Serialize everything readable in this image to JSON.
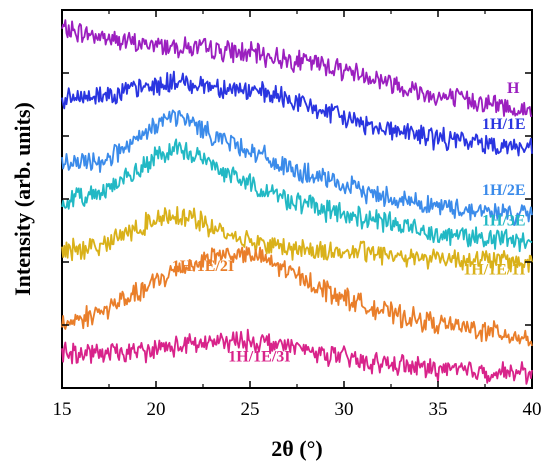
{
  "chart_data": {
    "type": "line",
    "xlabel": "2θ (°)",
    "ylabel": "Intensity (arb. units)",
    "xlim": [
      15,
      40
    ],
    "ylim": [
      0,
      1
    ],
    "xticks": [
      "15",
      "20",
      "25",
      "30",
      "35",
      "40"
    ],
    "x_tick_values": [
      15,
      20,
      25,
      30,
      35,
      40
    ],
    "grid": false,
    "legend": "inline labels",
    "series": [
      {
        "name": "H",
        "color": "#9B1FBF",
        "x": [
          15,
          17,
          19,
          21,
          23,
          25,
          27,
          29,
          31,
          33,
          35,
          37,
          39,
          40
        ],
        "y": [
          0.95,
          0.93,
          0.91,
          0.905,
          0.895,
          0.885,
          0.87,
          0.855,
          0.83,
          0.8,
          0.77,
          0.76,
          0.74,
          0.73
        ]
      },
      {
        "name": "1H/1E",
        "color": "#2A35E0",
        "x": [
          15,
          17,
          19,
          21,
          22,
          23,
          25,
          27,
          29,
          31,
          33,
          35,
          37,
          39,
          40
        ],
        "y": [
          0.76,
          0.775,
          0.79,
          0.81,
          0.805,
          0.8,
          0.785,
          0.765,
          0.73,
          0.7,
          0.68,
          0.66,
          0.65,
          0.64,
          0.63
        ]
      },
      {
        "name": "1H/2E",
        "color": "#3B8BEA",
        "x": [
          15,
          17,
          19,
          20,
          21,
          22,
          23,
          25,
          27,
          29,
          31,
          33,
          35,
          37,
          39,
          40
        ],
        "y": [
          0.59,
          0.6,
          0.65,
          0.7,
          0.72,
          0.7,
          0.67,
          0.63,
          0.58,
          0.55,
          0.52,
          0.5,
          0.48,
          0.47,
          0.46,
          0.455
        ]
      },
      {
        "name": "1H/3E",
        "color": "#22B8C4",
        "x": [
          15,
          17,
          19,
          20,
          21,
          22,
          23,
          25,
          27,
          29,
          31,
          33,
          35,
          37,
          39,
          40
        ],
        "y": [
          0.49,
          0.52,
          0.57,
          0.61,
          0.63,
          0.62,
          0.59,
          0.54,
          0.5,
          0.47,
          0.45,
          0.43,
          0.41,
          0.4,
          0.39,
          0.385
        ]
      },
      {
        "name": "1H/1E/1I",
        "color": "#D9B11A",
        "x": [
          15,
          17,
          19,
          20,
          21,
          22,
          23,
          25,
          27,
          29,
          31,
          33,
          35,
          37,
          39,
          40
        ],
        "y": [
          0.36,
          0.38,
          0.42,
          0.45,
          0.46,
          0.45,
          0.42,
          0.39,
          0.37,
          0.36,
          0.36,
          0.35,
          0.345,
          0.34,
          0.335,
          0.33
        ]
      },
      {
        "name": "1H/1E/2I",
        "color": "#E97E2A",
        "x": [
          15,
          17,
          19,
          21,
          22,
          23,
          24,
          25,
          26,
          27,
          29,
          31,
          33,
          35,
          37,
          39,
          40
        ],
        "y": [
          0.17,
          0.2,
          0.25,
          0.31,
          0.33,
          0.35,
          0.355,
          0.35,
          0.335,
          0.31,
          0.26,
          0.22,
          0.19,
          0.17,
          0.155,
          0.14,
          0.13
        ]
      },
      {
        "name": "1H/1E/3I",
        "color": "#D8238A",
        "x": [
          15,
          17,
          19,
          21,
          23,
          25,
          26,
          27,
          29,
          31,
          33,
          35,
          37,
          39,
          40
        ],
        "y": [
          0.09,
          0.09,
          0.095,
          0.11,
          0.12,
          0.125,
          0.12,
          0.11,
          0.09,
          0.07,
          0.06,
          0.05,
          0.045,
          0.04,
          0.04
        ]
      }
    ],
    "labels": [
      {
        "text": "H",
        "color": "#9B1FBF",
        "x": 39.0,
        "y": 0.78
      },
      {
        "text": "1H/1E",
        "color": "#2A35E0",
        "x": 38.5,
        "y": 0.685
      },
      {
        "text": "1H/2E",
        "color": "#3B8BEA",
        "x": 38.5,
        "y": 0.51
      },
      {
        "text": "1H/3E",
        "color": "#22B8C4",
        "x": 38.5,
        "y": 0.43
      },
      {
        "text": "1H/1E/1I",
        "color": "#D9B11A",
        "x": 38.0,
        "y": 0.3
      },
      {
        "text": "1H/1E/2I",
        "color": "#E97E2A",
        "x": 22.5,
        "y": 0.31
      },
      {
        "text": "1H/1E/3I",
        "color": "#D8238A",
        "x": 25.5,
        "y": 0.07
      }
    ]
  }
}
